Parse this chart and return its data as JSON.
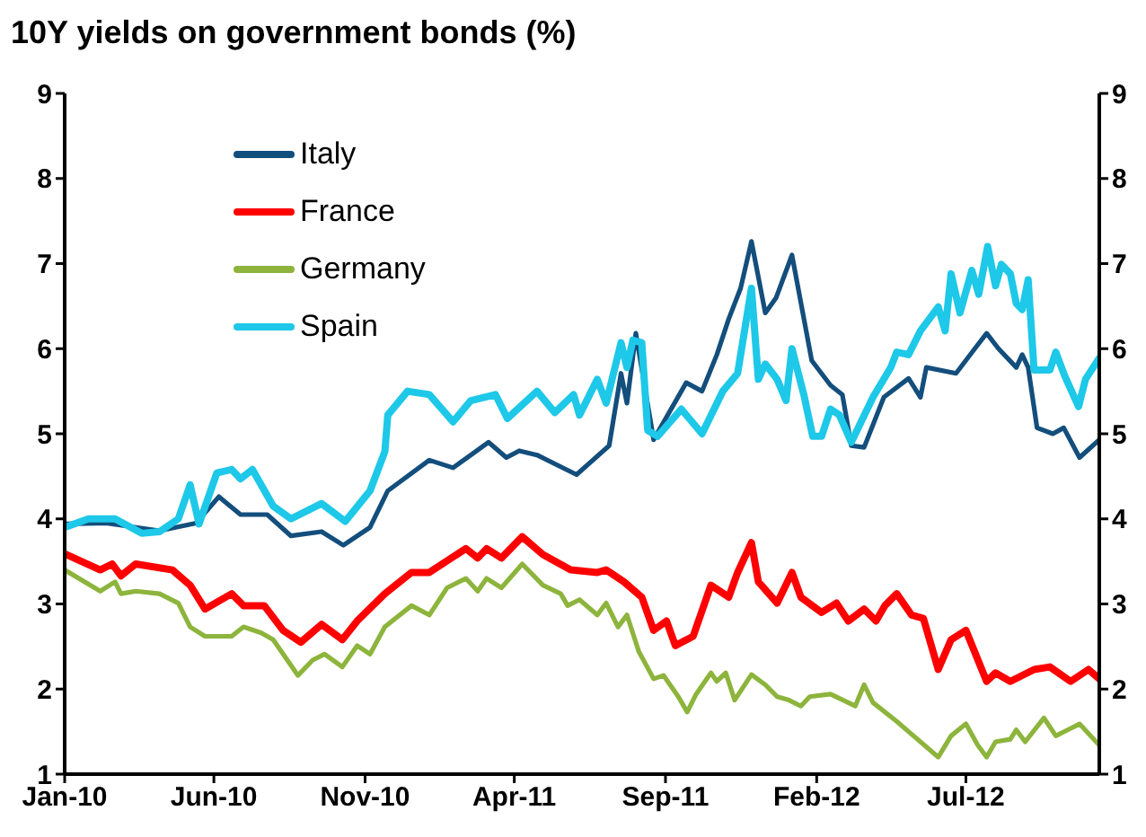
{
  "chart_data": {
    "type": "line",
    "title": "10Y yields on government bonds (%)",
    "xlim": [
      "2010-01-01",
      "2012-11-13"
    ],
    "xticks": [
      {
        "value": "2010-01-01",
        "label": "Jan-10"
      },
      {
        "value": "2010-06-01",
        "label": "Jun-10"
      },
      {
        "value": "2010-11-01",
        "label": "Nov-10"
      },
      {
        "value": "2011-04-01",
        "label": "Apr-11"
      },
      {
        "value": "2011-09-01",
        "label": "Sep-11"
      },
      {
        "value": "2012-02-01",
        "label": "Feb-12"
      },
      {
        "value": "2012-07-01",
        "label": "Jul-12"
      }
    ],
    "ylim": [
      1,
      9
    ],
    "yticks": [
      1,
      2,
      3,
      4,
      5,
      6,
      7,
      8,
      9
    ],
    "y2lim": [
      1,
      9
    ],
    "y2ticks": [
      1,
      2,
      3,
      4,
      5,
      6,
      7,
      8,
      9
    ],
    "legend": "top left",
    "marker": "none",
    "line_style": "solid",
    "series": [
      {
        "name": "Italy",
        "color": "#134e7c",
        "x": [
          "2010-01-01",
          "2010-02-12",
          "2010-04-07",
          "2010-05-14",
          "2010-06-06",
          "2010-06-28",
          "2010-07-25",
          "2010-08-18",
          "2010-09-18",
          "2010-10-10",
          "2010-11-06",
          "2010-11-24",
          "2011-01-05",
          "2011-01-29",
          "2011-03-06",
          "2011-03-24",
          "2011-04-06",
          "2011-04-24",
          "2011-06-03",
          "2011-07-06",
          "2011-07-18",
          "2011-07-24",
          "2011-08-02",
          "2011-08-20",
          "2011-09-22",
          "2011-10-08",
          "2011-10-23",
          "2011-11-04",
          "2011-11-16",
          "2011-11-27",
          "2011-12-11",
          "2011-12-22",
          "2012-01-07",
          "2012-01-27",
          "2012-02-15",
          "2012-02-27",
          "2012-03-07",
          "2012-03-20",
          "2012-04-09",
          "2012-05-04",
          "2012-05-16",
          "2012-05-22",
          "2012-06-21",
          "2012-07-10",
          "2012-07-22",
          "2012-08-03",
          "2012-08-21",
          "2012-08-27",
          "2012-09-02",
          "2012-09-11",
          "2012-09-27",
          "2012-10-08",
          "2012-10-24",
          "2012-11-13"
        ],
        "values": [
          3.94,
          3.95,
          3.86,
          3.95,
          4.26,
          4.05,
          4.05,
          3.8,
          3.85,
          3.69,
          3.9,
          4.33,
          4.69,
          4.6,
          4.9,
          4.72,
          4.8,
          4.75,
          4.52,
          4.86,
          5.71,
          5.36,
          6.18,
          4.93,
          5.6,
          5.5,
          5.93,
          6.35,
          6.71,
          7.26,
          6.42,
          6.6,
          7.1,
          5.86,
          5.57,
          5.46,
          4.86,
          4.84,
          5.43,
          5.65,
          5.43,
          5.78,
          5.71,
          6.0,
          6.18,
          6.0,
          5.78,
          5.93,
          5.78,
          5.07,
          5.0,
          5.07,
          4.72,
          4.93
        ]
      },
      {
        "name": "France",
        "color": "#ff0000",
        "x": [
          "2010-01-01",
          "2010-02-06",
          "2010-02-18",
          "2010-02-27",
          "2010-03-14",
          "2010-04-20",
          "2010-05-08",
          "2010-05-23",
          "2010-06-19",
          "2010-07-01",
          "2010-07-22",
          "2010-08-10",
          "2010-08-28",
          "2010-09-18",
          "2010-10-09",
          "2010-10-24",
          "2010-11-21",
          "2010-12-18",
          "2011-01-05",
          "2011-02-11",
          "2011-02-23",
          "2011-03-04",
          "2011-03-19",
          "2011-04-09",
          "2011-04-30",
          "2011-05-28",
          "2011-06-24",
          "2011-07-03",
          "2011-07-21",
          "2011-08-08",
          "2011-08-20",
          "2011-09-02",
          "2011-09-11",
          "2011-09-29",
          "2011-10-17",
          "2011-11-04",
          "2011-11-13",
          "2011-11-27",
          "2011-12-04",
          "2011-12-23",
          "2012-01-07",
          "2012-01-16",
          "2012-02-06",
          "2012-02-21",
          "2012-03-04",
          "2012-03-20",
          "2012-04-01",
          "2012-04-10",
          "2012-04-22",
          "2012-05-07",
          "2012-05-19",
          "2012-06-03",
          "2012-06-16",
          "2012-07-01",
          "2012-07-22",
          "2012-07-31",
          "2012-08-15",
          "2012-09-08",
          "2012-09-24",
          "2012-10-15",
          "2012-11-02",
          "2012-11-13"
        ],
        "values": [
          3.59,
          3.4,
          3.47,
          3.33,
          3.47,
          3.4,
          3.22,
          2.94,
          3.12,
          2.98,
          2.98,
          2.69,
          2.55,
          2.76,
          2.58,
          2.8,
          3.12,
          3.37,
          3.37,
          3.65,
          3.54,
          3.65,
          3.54,
          3.79,
          3.58,
          3.4,
          3.37,
          3.4,
          3.26,
          3.08,
          2.69,
          2.8,
          2.51,
          2.62,
          3.22,
          3.08,
          3.37,
          3.72,
          3.26,
          3.01,
          3.37,
          3.08,
          2.9,
          3.01,
          2.8,
          2.94,
          2.8,
          2.98,
          3.12,
          2.87,
          2.83,
          2.23,
          2.58,
          2.69,
          2.09,
          2.19,
          2.09,
          2.23,
          2.26,
          2.09,
          2.23,
          2.12
        ]
      },
      {
        "name": "Germany",
        "color": "#8db43c",
        "x": [
          "2010-01-01",
          "2010-02-06",
          "2010-02-21",
          "2010-02-27",
          "2010-03-14",
          "2010-04-07",
          "2010-04-26",
          "2010-05-08",
          "2010-05-23",
          "2010-06-19",
          "2010-07-01",
          "2010-07-19",
          "2010-07-31",
          "2010-08-25",
          "2010-09-09",
          "2010-09-21",
          "2010-10-09",
          "2010-10-24",
          "2010-11-06",
          "2010-11-21",
          "2010-12-18",
          "2011-01-05",
          "2011-01-23",
          "2011-02-11",
          "2011-02-23",
          "2011-03-04",
          "2011-03-19",
          "2011-04-09",
          "2011-04-30",
          "2011-05-18",
          "2011-05-25",
          "2011-06-06",
          "2011-06-24",
          "2011-07-03",
          "2011-07-15",
          "2011-07-24",
          "2011-08-05",
          "2011-08-20",
          "2011-08-30",
          "2011-09-14",
          "2011-09-23",
          "2011-10-02",
          "2011-10-17",
          "2011-10-23",
          "2011-11-01",
          "2011-11-10",
          "2011-11-27",
          "2011-12-11",
          "2011-12-23",
          "2012-01-04",
          "2012-01-16",
          "2012-01-25",
          "2012-02-15",
          "2012-03-11",
          "2012-03-20",
          "2012-03-29",
          "2012-04-22",
          "2012-05-16",
          "2012-06-03",
          "2012-06-16",
          "2012-07-01",
          "2012-07-13",
          "2012-07-22",
          "2012-07-31",
          "2012-08-15",
          "2012-08-21",
          "2012-08-30",
          "2012-09-18",
          "2012-09-30",
          "2012-10-12",
          "2012-10-24",
          "2012-11-13"
        ],
        "values": [
          3.4,
          3.15,
          3.26,
          3.12,
          3.15,
          3.12,
          3.01,
          2.73,
          2.62,
          2.62,
          2.73,
          2.66,
          2.58,
          2.16,
          2.34,
          2.41,
          2.26,
          2.51,
          2.41,
          2.73,
          2.98,
          2.87,
          3.19,
          3.3,
          3.15,
          3.3,
          3.19,
          3.47,
          3.22,
          3.12,
          2.98,
          3.05,
          2.87,
          3.01,
          2.73,
          2.87,
          2.44,
          2.12,
          2.16,
          1.91,
          1.73,
          1.94,
          2.19,
          2.09,
          2.19,
          1.87,
          2.17,
          2.05,
          1.91,
          1.87,
          1.8,
          1.91,
          1.94,
          1.8,
          2.05,
          1.84,
          1.62,
          1.38,
          1.2,
          1.45,
          1.59,
          1.34,
          1.2,
          1.38,
          1.41,
          1.52,
          1.38,
          1.66,
          1.45,
          1.52,
          1.59,
          1.34
        ]
      },
      {
        "name": "Spain",
        "color": "#1ec8e8",
        "x": [
          "2010-01-01",
          "2010-01-25",
          "2010-02-21",
          "2010-03-20",
          "2010-04-07",
          "2010-04-26",
          "2010-05-08",
          "2010-05-17",
          "2010-06-04",
          "2010-06-19",
          "2010-06-28",
          "2010-07-10",
          "2010-07-31",
          "2010-08-18",
          "2010-09-18",
          "2010-10-12",
          "2010-11-06",
          "2010-11-21",
          "2010-11-24",
          "2010-12-14",
          "2011-01-05",
          "2011-01-29",
          "2011-02-16",
          "2011-03-13",
          "2011-03-25",
          "2011-04-24",
          "2011-05-12",
          "2011-05-31",
          "2011-06-06",
          "2011-06-24",
          "2011-07-03",
          "2011-07-18",
          "2011-07-24",
          "2011-07-30",
          "2011-08-08",
          "2011-08-14",
          "2011-08-24",
          "2011-09-17",
          "2011-10-08",
          "2011-10-29",
          "2011-11-13",
          "2011-11-27",
          "2011-12-04",
          "2011-12-11",
          "2011-12-23",
          "2012-01-01",
          "2012-01-07",
          "2012-01-19",
          "2012-01-28",
          "2012-02-06",
          "2012-02-15",
          "2012-02-24",
          "2012-03-07",
          "2012-03-29",
          "2012-04-16",
          "2012-04-22",
          "2012-05-04",
          "2012-05-16",
          "2012-06-03",
          "2012-06-10",
          "2012-06-16",
          "2012-06-25",
          "2012-07-07",
          "2012-07-14",
          "2012-07-23",
          "2012-07-31",
          "2012-08-06",
          "2012-08-15",
          "2012-08-21",
          "2012-08-27",
          "2012-09-02",
          "2012-09-08",
          "2012-09-24",
          "2012-09-30",
          "2012-10-09",
          "2012-10-23",
          "2012-10-30",
          "2012-11-13"
        ],
        "values": [
          3.9,
          4.0,
          4.0,
          3.83,
          3.85,
          4.0,
          4.4,
          3.94,
          4.54,
          4.58,
          4.47,
          4.58,
          4.15,
          4.0,
          4.18,
          3.97,
          4.33,
          4.79,
          5.22,
          5.5,
          5.46,
          5.14,
          5.39,
          5.46,
          5.18,
          5.5,
          5.25,
          5.46,
          5.22,
          5.64,
          5.36,
          6.07,
          5.78,
          6.1,
          6.07,
          5.04,
          4.97,
          5.29,
          5.0,
          5.5,
          5.71,
          6.71,
          5.64,
          5.82,
          5.64,
          5.39,
          6.0,
          5.46,
          4.97,
          4.97,
          5.29,
          5.22,
          4.9,
          5.43,
          5.78,
          5.96,
          5.93,
          6.21,
          6.49,
          6.21,
          6.88,
          6.42,
          6.92,
          6.64,
          7.2,
          6.74,
          6.99,
          6.88,
          6.53,
          6.46,
          6.81,
          5.75,
          5.75,
          5.96,
          5.68,
          5.32,
          5.64,
          5.89
        ]
      }
    ]
  }
}
